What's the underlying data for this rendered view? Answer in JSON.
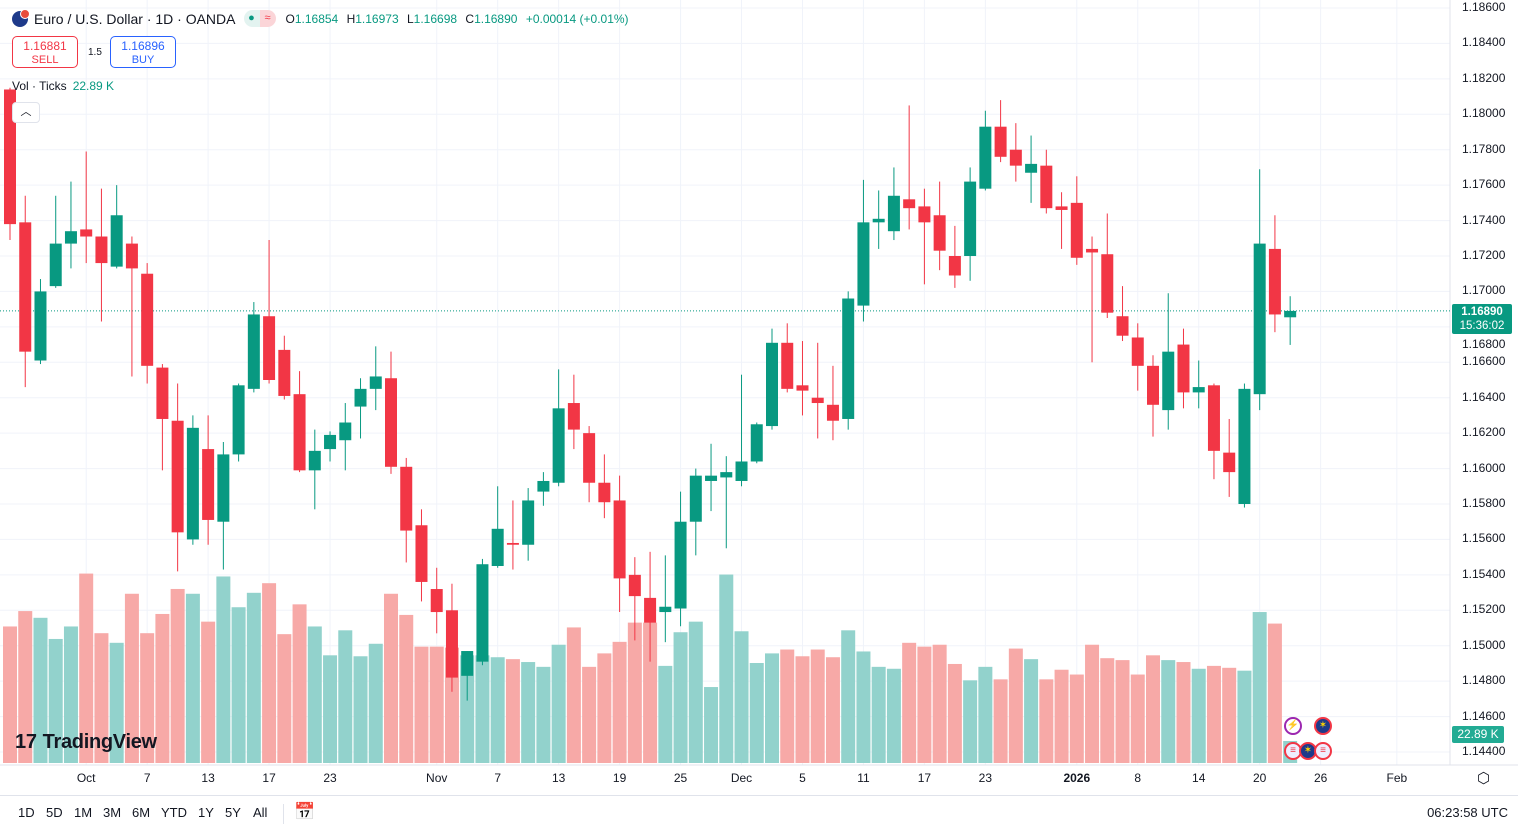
{
  "header": {
    "symbol_title": "Euro / U.S. Dollar · 1D · OANDA",
    "ohlc": {
      "o_label": "O",
      "o": "1.16854",
      "h_label": "H",
      "h": "1.16973",
      "l_label": "L",
      "l": "1.16698",
      "c_label": "C",
      "c": "1.16890",
      "change": "+0.00014 (+0.01%)"
    },
    "sell": {
      "price": "1.16881",
      "label": "SELL"
    },
    "buy": {
      "price": "1.16896",
      "label": "BUY"
    },
    "spread": "1.5",
    "volume_legend": {
      "label": "Vol · Ticks",
      "value": "22.89 K"
    }
  },
  "colors": {
    "up": "#089981",
    "down": "#f23645",
    "vol_up": "#92d2cc",
    "vol_down": "#f7a9a7",
    "grid": "#f0f3fa"
  },
  "price_scale": {
    "current_price": "1.16890",
    "countdown": "15:36:02",
    "volume_value": "22.89 K"
  },
  "bottom_toolbar": {
    "ranges": [
      "1D",
      "5D",
      "1M",
      "3M",
      "6M",
      "YTD",
      "1Y",
      "5Y",
      "All"
    ],
    "time": "06:23:58 UTC"
  },
  "logo_text": "TradingView",
  "chart_data": {
    "type": "candlestick",
    "title": "Euro / U.S. Dollar · 1D · OANDA",
    "ylim": [
      1.144,
      1.186
    ],
    "yticks": [
      "1.18600",
      "1.18400",
      "1.18200",
      "1.18000",
      "1.17800",
      "1.17600",
      "1.17400",
      "1.17200",
      "1.17000",
      "1.16800",
      "1.16600",
      "1.16400",
      "1.16200",
      "1.16000",
      "1.15800",
      "1.15600",
      "1.15400",
      "1.15200",
      "1.15000",
      "1.14800",
      "1.14600",
      "1.14400"
    ],
    "xticks": [
      {
        "label": "Oct",
        "index": 5
      },
      {
        "label": "7",
        "index": 9
      },
      {
        "label": "13",
        "index": 13
      },
      {
        "label": "17",
        "index": 17
      },
      {
        "label": "23",
        "index": 21
      },
      {
        "label": "Nov",
        "index": 28
      },
      {
        "label": "7",
        "index": 32
      },
      {
        "label": "13",
        "index": 36
      },
      {
        "label": "19",
        "index": 40
      },
      {
        "label": "25",
        "index": 44
      },
      {
        "label": "Dec",
        "index": 48
      },
      {
        "label": "5",
        "index": 52
      },
      {
        "label": "11",
        "index": 56
      },
      {
        "label": "17",
        "index": 60
      },
      {
        "label": "23",
        "index": 64
      },
      {
        "label": "2026",
        "index": 70,
        "bold": true
      },
      {
        "label": "8",
        "index": 74
      },
      {
        "label": "14",
        "index": 78
      },
      {
        "label": "20",
        "index": 82
      },
      {
        "label": "26",
        "index": 86
      },
      {
        "label": "Feb",
        "index": 91
      }
    ],
    "ohlc_columns": [
      "open",
      "high",
      "low",
      "close"
    ],
    "candles": [
      [
        1.1814,
        1.1815,
        1.1729,
        1.1738
      ],
      [
        1.1739,
        1.1754,
        1.1646,
        1.1666
      ],
      [
        1.1661,
        1.1707,
        1.1659,
        1.17
      ],
      [
        1.1703,
        1.1754,
        1.1702,
        1.1727
      ],
      [
        1.1727,
        1.1762,
        1.1713,
        1.1734
      ],
      [
        1.1735,
        1.1779,
        1.1716,
        1.1731
      ],
      [
        1.1731,
        1.1758,
        1.1683,
        1.1716
      ],
      [
        1.1714,
        1.176,
        1.1713,
        1.1743
      ],
      [
        1.1727,
        1.1731,
        1.1652,
        1.1713
      ],
      [
        1.171,
        1.1716,
        1.1648,
        1.1658
      ],
      [
        1.1657,
        1.1659,
        1.1599,
        1.1628
      ],
      [
        1.1627,
        1.1648,
        1.1542,
        1.1564
      ],
      [
        1.156,
        1.163,
        1.1557,
        1.1623
      ],
      [
        1.1611,
        1.163,
        1.1557,
        1.1571
      ],
      [
        1.157,
        1.1615,
        1.1543,
        1.1608
      ],
      [
        1.1608,
        1.1648,
        1.1604,
        1.1647
      ],
      [
        1.1645,
        1.1694,
        1.1643,
        1.1687
      ],
      [
        1.1686,
        1.1729,
        1.1648,
        1.165
      ],
      [
        1.1667,
        1.1675,
        1.1639,
        1.1641
      ],
      [
        1.1642,
        1.1655,
        1.1598,
        1.1599
      ],
      [
        1.1599,
        1.1622,
        1.1577,
        1.161
      ],
      [
        1.1611,
        1.1621,
        1.1604,
        1.1619
      ],
      [
        1.1616,
        1.1637,
        1.1599,
        1.1626
      ],
      [
        1.1635,
        1.1651,
        1.1617,
        1.1645
      ],
      [
        1.1645,
        1.1669,
        1.1633,
        1.1652
      ],
      [
        1.1651,
        1.1666,
        1.1597,
        1.1601
      ],
      [
        1.1601,
        1.1606,
        1.1547,
        1.1565
      ],
      [
        1.1568,
        1.1577,
        1.1525,
        1.1536
      ],
      [
        1.1532,
        1.1544,
        1.1507,
        1.1519
      ],
      [
        1.152,
        1.1535,
        1.1474,
        1.1482
      ],
      [
        1.1483,
        1.1497,
        1.1469,
        1.1497
      ],
      [
        1.1491,
        1.1549,
        1.1489,
        1.1546
      ],
      [
        1.1545,
        1.159,
        1.1544,
        1.1566
      ],
      [
        1.1558,
        1.1582,
        1.1543,
        1.1557
      ],
      [
        1.1557,
        1.1589,
        1.1548,
        1.1582
      ],
      [
        1.1587,
        1.1598,
        1.1579,
        1.1593
      ],
      [
        1.1592,
        1.1656,
        1.159,
        1.1634
      ],
      [
        1.1637,
        1.1653,
        1.1611,
        1.1622
      ],
      [
        1.162,
        1.1624,
        1.1581,
        1.1592
      ],
      [
        1.1592,
        1.1608,
        1.1572,
        1.1581
      ],
      [
        1.1582,
        1.1596,
        1.1519,
        1.1538
      ],
      [
        1.154,
        1.155,
        1.1503,
        1.1528
      ],
      [
        1.1527,
        1.1553,
        1.1491,
        1.1513
      ],
      [
        1.1519,
        1.1551,
        1.1502,
        1.1522
      ],
      [
        1.1521,
        1.1587,
        1.1511,
        1.157
      ],
      [
        1.157,
        1.16,
        1.1551,
        1.1596
      ],
      [
        1.1593,
        1.1614,
        1.1576,
        1.1596
      ],
      [
        1.1595,
        1.1607,
        1.1555,
        1.1598
      ],
      [
        1.1593,
        1.1653,
        1.159,
        1.1604
      ],
      [
        1.1604,
        1.1626,
        1.1603,
        1.1625
      ],
      [
        1.1624,
        1.1679,
        1.1622,
        1.1671
      ],
      [
        1.1671,
        1.1682,
        1.1643,
        1.1645
      ],
      [
        1.1647,
        1.1672,
        1.163,
        1.1644
      ],
      [
        1.164,
        1.1671,
        1.1617,
        1.1637
      ],
      [
        1.1636,
        1.1658,
        1.1616,
        1.1627
      ],
      [
        1.1628,
        1.17,
        1.1622,
        1.1696
      ],
      [
        1.1692,
        1.1763,
        1.1683,
        1.1739
      ],
      [
        1.1739,
        1.1757,
        1.1724,
        1.1741
      ],
      [
        1.1734,
        1.177,
        1.1729,
        1.1754
      ],
      [
        1.1752,
        1.1805,
        1.1735,
        1.1747
      ],
      [
        1.1748,
        1.1758,
        1.1704,
        1.1739
      ],
      [
        1.1743,
        1.1762,
        1.1712,
        1.1723
      ],
      [
        1.172,
        1.1737,
        1.1702,
        1.1709
      ],
      [
        1.172,
        1.177,
        1.1706,
        1.1762
      ],
      [
        1.1758,
        1.1802,
        1.1757,
        1.1793
      ],
      [
        1.1793,
        1.1808,
        1.1773,
        1.1776
      ],
      [
        1.178,
        1.1795,
        1.1762,
        1.1771
      ],
      [
        1.1767,
        1.1788,
        1.175,
        1.1772
      ],
      [
        1.1771,
        1.178,
        1.1744,
        1.1747
      ],
      [
        1.1748,
        1.1756,
        1.1724,
        1.1746
      ],
      [
        1.175,
        1.1765,
        1.1715,
        1.1719
      ],
      [
        1.1724,
        1.1731,
        1.166,
        1.1722
      ],
      [
        1.1721,
        1.1744,
        1.1685,
        1.1688
      ],
      [
        1.1686,
        1.1703,
        1.1672,
        1.1675
      ],
      [
        1.1674,
        1.1682,
        1.1644,
        1.1658
      ],
      [
        1.1658,
        1.1664,
        1.1618,
        1.1636
      ],
      [
        1.1633,
        1.1699,
        1.1622,
        1.1666
      ],
      [
        1.167,
        1.1679,
        1.1634,
        1.1643
      ],
      [
        1.1643,
        1.1661,
        1.1634,
        1.1646
      ],
      [
        1.1647,
        1.1648,
        1.1594,
        1.161
      ],
      [
        1.1609,
        1.1628,
        1.1584,
        1.1598
      ],
      [
        1.158,
        1.1648,
        1.1578,
        1.1645
      ],
      [
        1.1642,
        1.1769,
        1.1633,
        1.1727
      ],
      [
        1.1724,
        1.1743,
        1.1677,
        1.1687
      ],
      [
        1.16854,
        1.16973,
        1.16698,
        1.1689
      ]
    ],
    "volume_label": "Vol · Ticks (K)",
    "volume": [
      142,
      158,
      151,
      129,
      142,
      197,
      135,
      125,
      176,
      135,
      155,
      181,
      176,
      147,
      194,
      162,
      177,
      187,
      134,
      165,
      142,
      112,
      138,
      111,
      124,
      176,
      154,
      121,
      121,
      120,
      112,
      112,
      110,
      108,
      105,
      100,
      123,
      141,
      100,
      114,
      126,
      146,
      146,
      101,
      136,
      147,
      79,
      196,
      137,
      104,
      114,
      118,
      111,
      118,
      110,
      138,
      116,
      100,
      98,
      125,
      121,
      123,
      103,
      86,
      100,
      87,
      119,
      108,
      87,
      97,
      92,
      123,
      109,
      107,
      92,
      112,
      107,
      105,
      98,
      101,
      99,
      96,
      157,
      145,
      22.89
    ]
  }
}
